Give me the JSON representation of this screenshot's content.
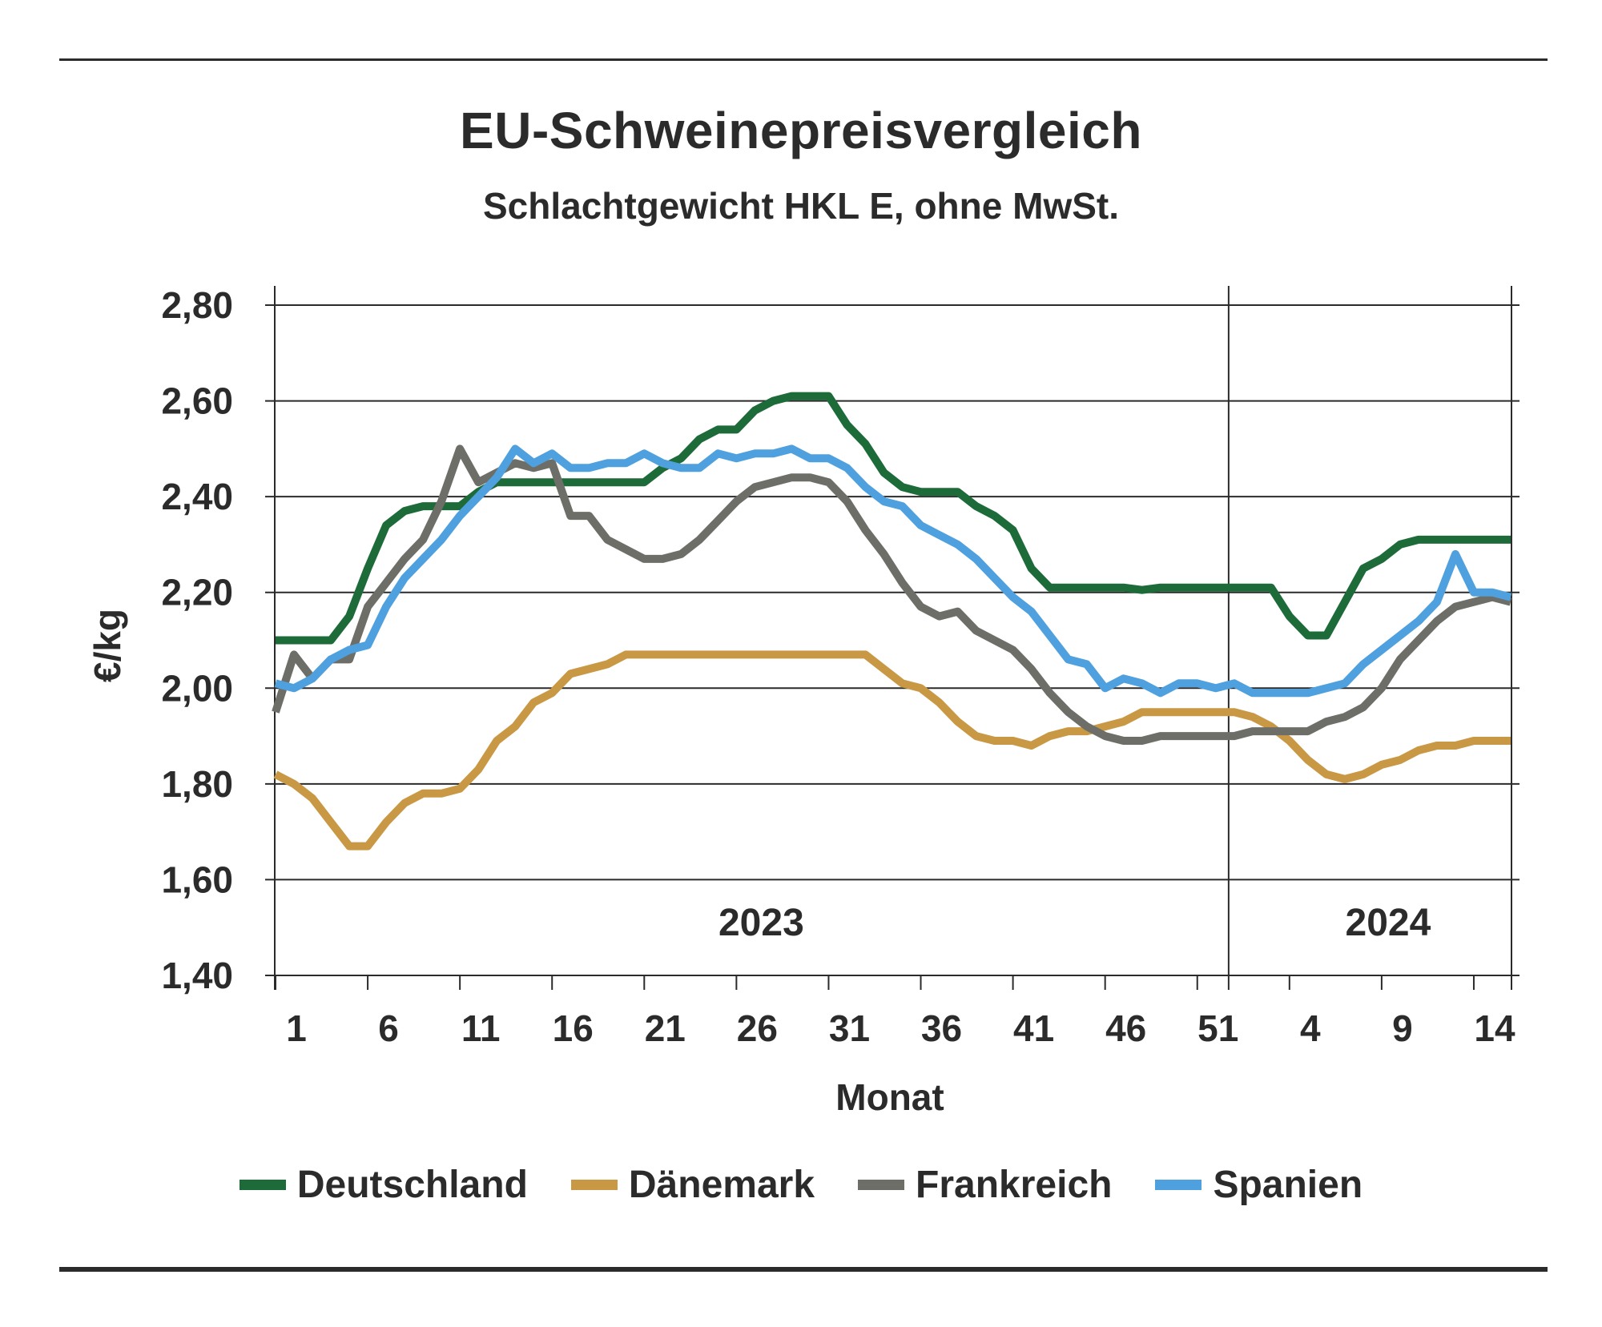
{
  "title": "EU-Schweinepreisvergleich",
  "subtitle": "Schlachtgewicht HKL E, ohne MwSt.",
  "chart_data": {
    "type": "line",
    "title": "EU-Schweinepreisvergleich",
    "subtitle": "Schlachtgewicht HKL E, ohne MwSt.",
    "ylabel": "€/kg",
    "xlabel": "Monat",
    "ylim": [
      1.4,
      2.8
    ],
    "yticks": [
      "1,40",
      "1,60",
      "1,80",
      "2,00",
      "2,20",
      "2,40",
      "2,60",
      "2,80"
    ],
    "y_tick_values": [
      1.4,
      1.6,
      1.8,
      2.0,
      2.2,
      2.4,
      2.6,
      2.8
    ],
    "x_tick_labels": [
      "1",
      "6",
      "11",
      "16",
      "21",
      "26",
      "31",
      "36",
      "41",
      "46",
      "51",
      "4",
      "9",
      "14"
    ],
    "x_tick_index": [
      0,
      5,
      10,
      15,
      20,
      25,
      30,
      35,
      40,
      45,
      50,
      55,
      60,
      65
    ],
    "x_count": 68,
    "year_labels": [
      {
        "label": "2023",
        "x_index": 26
      },
      {
        "label": "2024",
        "x_index": 60
      }
    ],
    "year_boundary_index": 52,
    "grid": "horizontal",
    "legend_position": "bottom",
    "series": [
      {
        "name": "Deutschland",
        "color": "#1e6b3a",
        "values": [
          2.1,
          2.1,
          2.1,
          2.1,
          2.15,
          2.25,
          2.34,
          2.37,
          2.38,
          2.38,
          2.38,
          2.41,
          2.43,
          2.43,
          2.43,
          2.43,
          2.43,
          2.43,
          2.43,
          2.43,
          2.43,
          2.46,
          2.48,
          2.52,
          2.54,
          2.54,
          2.58,
          2.6,
          2.61,
          2.61,
          2.61,
          2.55,
          2.51,
          2.45,
          2.42,
          2.41,
          2.41,
          2.41,
          2.38,
          2.36,
          2.33,
          2.25,
          2.21,
          2.21,
          2.21,
          2.21,
          2.21,
          2.205,
          2.21,
          2.21,
          2.21,
          2.21,
          2.21,
          2.21,
          2.21,
          2.15,
          2.11,
          2.11,
          2.18,
          2.25,
          2.27,
          2.3,
          2.31,
          2.31,
          2.31,
          2.31,
          2.31,
          2.31
        ]
      },
      {
        "name": "Dänemark",
        "color": "#c99845",
        "values": [
          1.82,
          1.8,
          1.77,
          1.72,
          1.67,
          1.67,
          1.72,
          1.76,
          1.78,
          1.78,
          1.79,
          1.83,
          1.89,
          1.92,
          1.97,
          1.99,
          2.03,
          2.04,
          2.05,
          2.07,
          2.07,
          2.07,
          2.07,
          2.07,
          2.07,
          2.07,
          2.07,
          2.07,
          2.07,
          2.07,
          2.07,
          2.07,
          2.07,
          2.04,
          2.01,
          2.0,
          1.97,
          1.93,
          1.9,
          1.89,
          1.89,
          1.88,
          1.9,
          1.91,
          1.91,
          1.92,
          1.93,
          1.95,
          1.95,
          1.95,
          1.95,
          1.95,
          1.95,
          1.94,
          1.92,
          1.89,
          1.85,
          1.82,
          1.81,
          1.82,
          1.84,
          1.85,
          1.87,
          1.88,
          1.88,
          1.89,
          1.89,
          1.89
        ]
      },
      {
        "name": "Frankreich",
        "color": "#6d6e68",
        "values": [
          1.95,
          2.07,
          2.02,
          2.06,
          2.06,
          2.17,
          2.22,
          2.27,
          2.31,
          2.39,
          2.5,
          2.43,
          2.45,
          2.47,
          2.46,
          2.47,
          2.36,
          2.36,
          2.31,
          2.29,
          2.27,
          2.27,
          2.28,
          2.31,
          2.35,
          2.39,
          2.42,
          2.43,
          2.44,
          2.44,
          2.43,
          2.39,
          2.33,
          2.28,
          2.22,
          2.17,
          2.15,
          2.16,
          2.12,
          2.1,
          2.08,
          2.04,
          1.99,
          1.95,
          1.92,
          1.9,
          1.89,
          1.89,
          1.9,
          1.9,
          1.9,
          1.9,
          1.9,
          1.91,
          1.91,
          1.91,
          1.91,
          1.93,
          1.94,
          1.96,
          2.0,
          2.06,
          2.1,
          2.14,
          2.17,
          2.18,
          2.19,
          2.18
        ]
      },
      {
        "name": "Spanien",
        "color": "#4fa0de",
        "values": [
          2.01,
          2.0,
          2.02,
          2.06,
          2.08,
          2.09,
          2.17,
          2.23,
          2.27,
          2.31,
          2.36,
          2.4,
          2.44,
          2.5,
          2.47,
          2.49,
          2.46,
          2.46,
          2.47,
          2.47,
          2.49,
          2.47,
          2.46,
          2.46,
          2.49,
          2.48,
          2.49,
          2.49,
          2.5,
          2.48,
          2.48,
          2.46,
          2.42,
          2.39,
          2.38,
          2.34,
          2.32,
          2.3,
          2.27,
          2.23,
          2.19,
          2.16,
          2.11,
          2.06,
          2.05,
          2.0,
          2.02,
          2.01,
          1.99,
          2.01,
          2.01,
          2.0,
          2.01,
          1.99,
          1.99,
          1.99,
          1.99,
          2.0,
          2.01,
          2.05,
          2.08,
          2.11,
          2.14,
          2.18,
          2.28,
          2.2,
          2.2,
          2.19
        ]
      }
    ]
  }
}
